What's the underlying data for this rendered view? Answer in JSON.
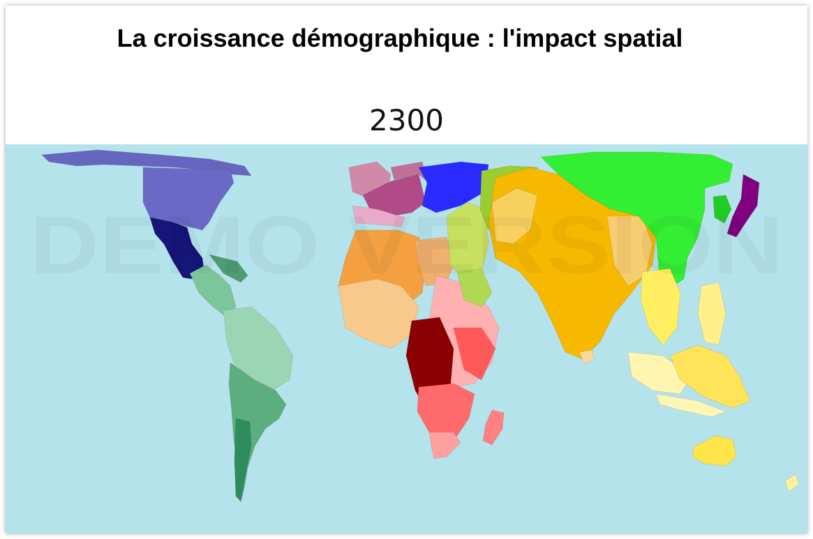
{
  "header": {
    "title": "La croissance démographique : l'impact spatial",
    "year": "2300"
  },
  "watermark": "DEMO VERSION"
}
